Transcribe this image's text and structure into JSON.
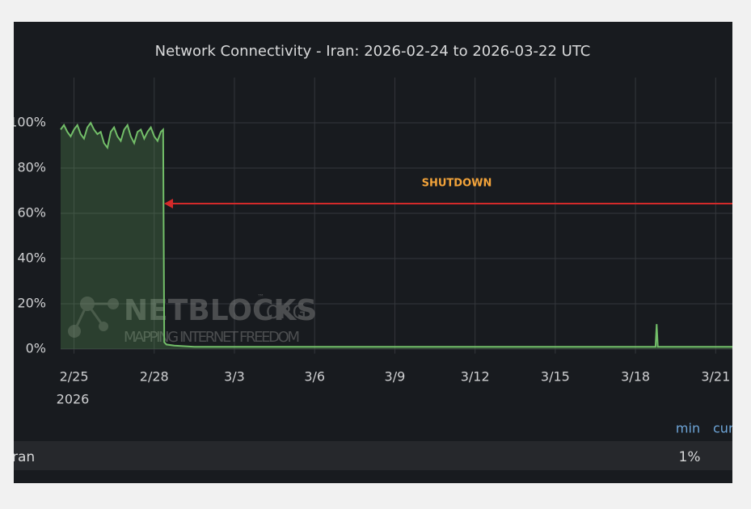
{
  "chart_data": {
    "type": "line",
    "title": "Network Connectivity - Iran: 2026-02-24 to 2026-03-22 UTC",
    "x_year_label": "2026",
    "xlim": [
      "2026-02-24T12:00",
      "2026-03-21T15:00"
    ],
    "xticks": [
      {
        "value": "2026-02-25",
        "label": "2/25"
      },
      {
        "value": "2026-02-28",
        "label": "2/28"
      },
      {
        "value": "2026-03-03",
        "label": "3/3"
      },
      {
        "value": "2026-03-06",
        "label": "3/6"
      },
      {
        "value": "2026-03-09",
        "label": "3/9"
      },
      {
        "value": "2026-03-12",
        "label": "3/12"
      },
      {
        "value": "2026-03-15",
        "label": "3/15"
      },
      {
        "value": "2026-03-18",
        "label": "3/18"
      },
      {
        "value": "2026-03-21",
        "label": "3/21"
      }
    ],
    "ylim": [
      -2,
      120
    ],
    "yticks": [
      {
        "value": 0,
        "label": "0%"
      },
      {
        "value": 20,
        "label": "20%"
      },
      {
        "value": 40,
        "label": "40%"
      },
      {
        "value": 60,
        "label": "60%"
      },
      {
        "value": 80,
        "label": "80%"
      },
      {
        "value": 100,
        "label": "100%"
      }
    ],
    "grid": true,
    "annotation": "SHUTDOWN",
    "watermark": {
      "title": "NETBLOCKS",
      "suffix": ".ORG",
      "tm": "™",
      "tagline": "MAPPING INTERNET FREEDOM"
    },
    "legend_columns": [
      "min",
      "cur"
    ],
    "series": [
      {
        "name": "Iran",
        "color": "#73bf69",
        "legend_values": [
          "1%"
        ],
        "x": [
          "2026-02-24T12:00",
          "2026-02-24T15:00",
          "2026-02-24T18:00",
          "2026-02-24T21:00",
          "2026-02-25T00:00",
          "2026-02-25T03:00",
          "2026-02-25T06:00",
          "2026-02-25T09:00",
          "2026-02-25T12:00",
          "2026-02-25T15:00",
          "2026-02-25T18:00",
          "2026-02-25T21:00",
          "2026-02-26T00:00",
          "2026-02-26T03:00",
          "2026-02-26T06:00",
          "2026-02-26T09:00",
          "2026-02-26T12:00",
          "2026-02-26T15:00",
          "2026-02-26T18:00",
          "2026-02-26T21:00",
          "2026-02-27T00:00",
          "2026-02-27T03:00",
          "2026-02-27T06:00",
          "2026-02-27T09:00",
          "2026-02-27T12:00",
          "2026-02-27T15:00",
          "2026-02-27T18:00",
          "2026-02-27T21:00",
          "2026-02-28T00:00",
          "2026-02-28T03:00",
          "2026-02-28T06:00",
          "2026-02-28T08:00",
          "2026-02-28T09:00",
          "2026-02-28T11:00",
          "2026-02-28T18:00",
          "2026-03-01T12:00",
          "2026-03-03T00:00",
          "2026-03-05T00:00",
          "2026-03-07T00:00",
          "2026-03-09T00:00",
          "2026-03-11T00:00",
          "2026-03-13T00:00",
          "2026-03-15T00:00",
          "2026-03-17T00:00",
          "2026-03-18T18:00",
          "2026-03-18T19:00",
          "2026-03-18T20:00",
          "2026-03-19T12:00",
          "2026-03-20T12:00",
          "2026-03-21T15:00"
        ],
        "values": [
          97,
          99,
          96,
          94,
          97,
          99,
          95,
          93,
          98,
          100,
          97,
          95,
          96,
          91,
          89,
          96,
          98,
          94,
          92,
          97,
          99,
          94,
          91,
          96,
          97,
          93,
          96,
          98,
          94,
          92,
          96,
          97,
          3,
          2,
          1.5,
          1,
          1,
          1,
          1,
          1,
          1,
          1,
          1,
          1,
          1,
          11,
          1,
          1,
          1,
          1
        ]
      }
    ]
  }
}
